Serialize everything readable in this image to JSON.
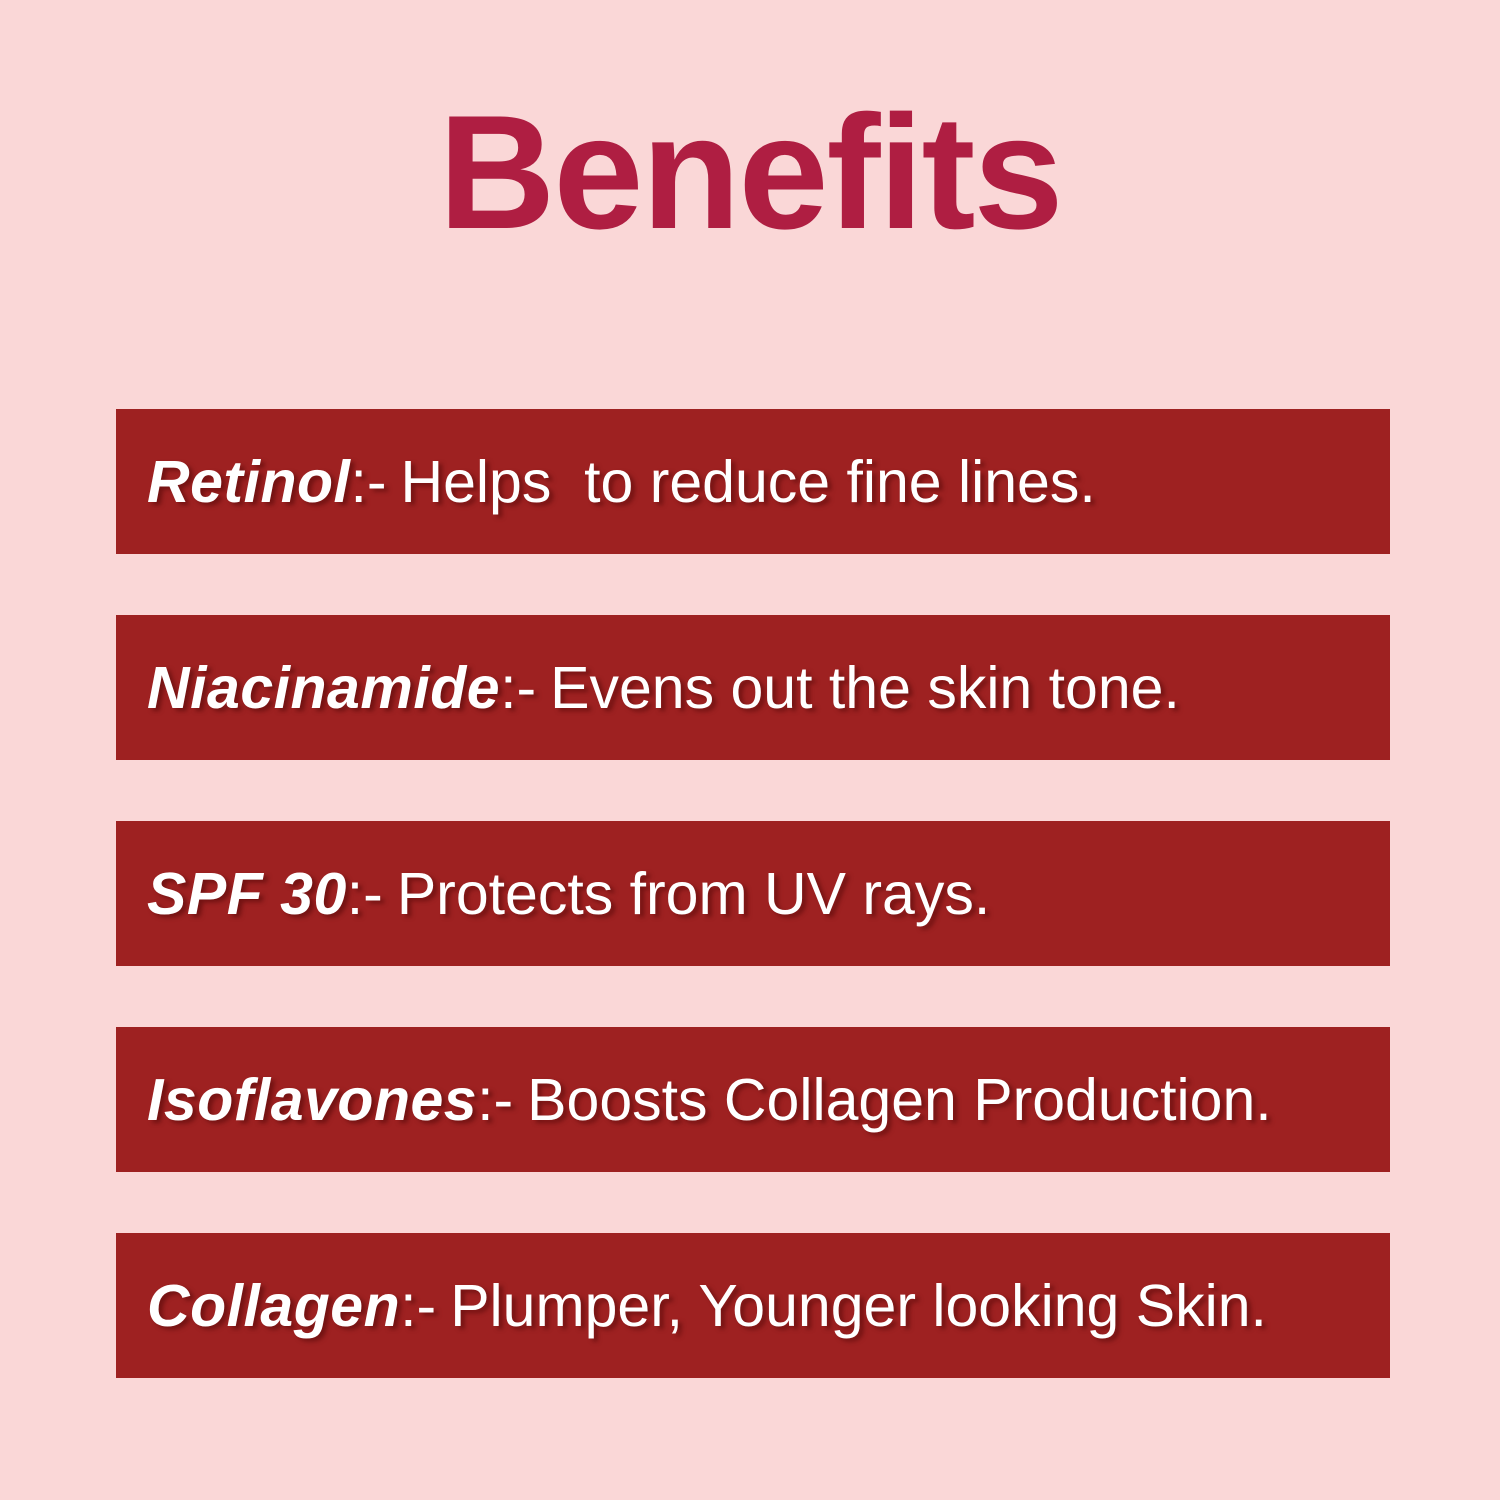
{
  "page": {
    "title": "Benefits",
    "background_color": "#FAD7D7",
    "title_color": "#AF1E42",
    "bar_color": "#9E2121",
    "bar_text_color": "#FFFFFF"
  },
  "benefits": [
    {
      "term": "Retinol",
      "separator": ":-",
      "description": "Helps  to reduce fine lines."
    },
    {
      "term": "Niacinamide",
      "separator": ":-",
      "description": "Evens out the skin tone."
    },
    {
      "term": "SPF 30",
      "separator": ":-",
      "description": "Protects from UV rays."
    },
    {
      "term": "Isoflavones",
      "separator": ":-",
      "description": "Boosts Collagen Production."
    },
    {
      "term": "Collagen",
      "separator": ":-",
      "description": "Plumper, Younger looking Skin."
    }
  ]
}
